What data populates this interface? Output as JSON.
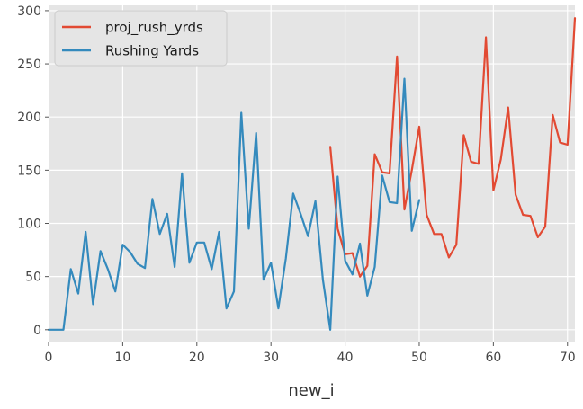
{
  "chart_data": {
    "type": "line",
    "title": "",
    "xlabel": "new_i",
    "ylabel": "",
    "xlim": [
      0,
      71
    ],
    "ylim": [
      -12,
      305
    ],
    "xticks": [
      0,
      10,
      20,
      30,
      40,
      50,
      60,
      70
    ],
    "yticks": [
      0,
      50,
      100,
      150,
      200,
      250,
      300
    ],
    "grid": true,
    "legend": "upper-left",
    "background": "#e5e5e5",
    "series": [
      {
        "name": "proj_rush_yrds",
        "color": "#e24a33",
        "x": [
          38,
          39,
          40,
          41,
          42,
          43,
          44,
          45,
          46,
          47,
          48,
          49,
          50,
          51,
          52,
          53,
          54,
          55,
          56,
          57,
          58,
          59,
          60,
          61,
          62,
          63,
          64,
          65,
          66,
          67,
          68,
          69,
          70,
          71
        ],
        "values": [
          172,
          95,
          71,
          72,
          50,
          60,
          165,
          148,
          147,
          257,
          113,
          150,
          191,
          108,
          90,
          90,
          68,
          80,
          183,
          158,
          156,
          275,
          131,
          160,
          209,
          127,
          108,
          107,
          87,
          97,
          202,
          176,
          174,
          293
        ]
      },
      {
        "name": "Rushing Yards",
        "color": "#348abd",
        "x": [
          0,
          1,
          2,
          3,
          4,
          5,
          6,
          7,
          8,
          9,
          10,
          11,
          12,
          13,
          14,
          15,
          16,
          17,
          18,
          19,
          20,
          21,
          22,
          23,
          24,
          25,
          26,
          27,
          28,
          29,
          30,
          31,
          32,
          33,
          34,
          35,
          36,
          37,
          38,
          39,
          40,
          41,
          42,
          43,
          44,
          45,
          46,
          47,
          48,
          49,
          50
        ],
        "values": [
          0,
          0,
          0,
          57,
          34,
          92,
          24,
          74,
          57,
          36,
          80,
          73,
          62,
          58,
          123,
          90,
          109,
          59,
          147,
          63,
          82,
          82,
          57,
          92,
          20,
          36,
          204,
          95,
          185,
          47,
          63,
          20,
          67,
          128,
          109,
          88,
          121,
          47,
          0,
          144,
          65,
          52,
          81,
          32,
          59,
          145,
          120,
          119,
          236,
          93,
          122
        ]
      }
    ]
  }
}
